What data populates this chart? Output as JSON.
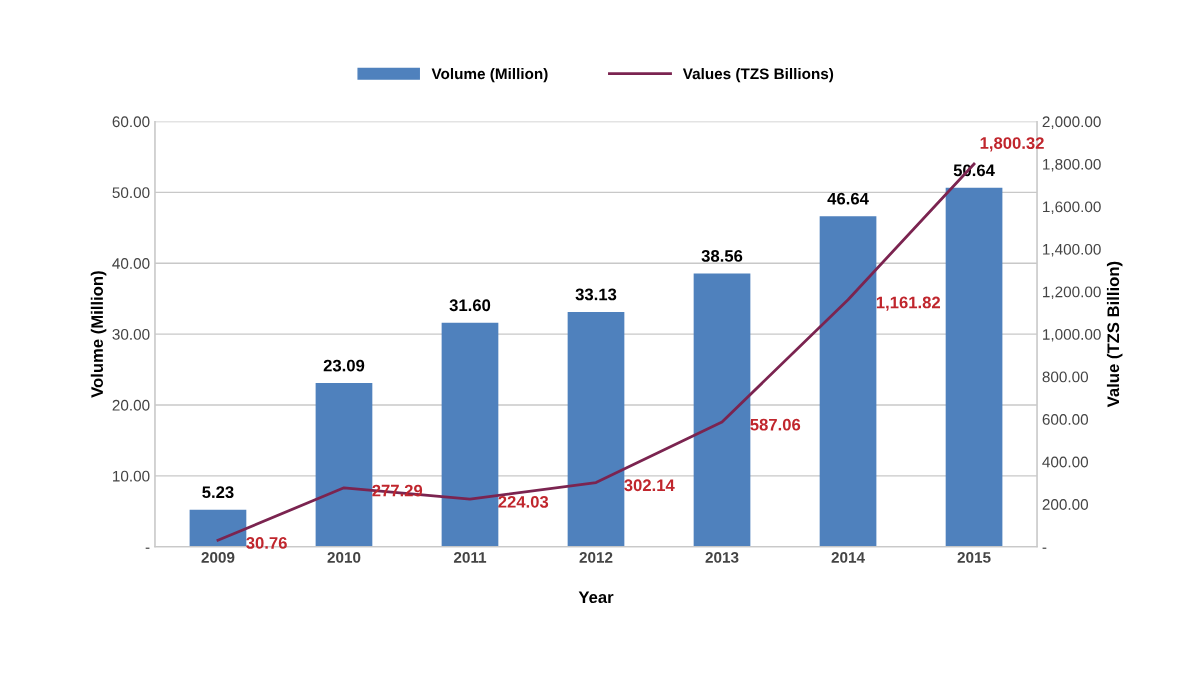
{
  "chart_data": {
    "type": "bar",
    "xlabel": "Year",
    "ylabel": "Volume (Million)",
    "y2label": "Value (TZS Billion)",
    "categories": [
      "2009",
      "2010",
      "2011",
      "2012",
      "2013",
      "2014",
      "2015"
    ],
    "series": [
      {
        "name": "Volume (Million)",
        "color": "#4f81bd",
        "values": [
          5.23,
          23.09,
          31.6,
          33.13,
          38.56,
          46.64,
          50.64
        ],
        "value_labels": [
          "5.23",
          "23.09",
          "31.60",
          "33.13",
          "38.56",
          "46.64",
          "50.64"
        ]
      },
      {
        "name": "Values (TZS Billions)",
        "type": "line",
        "axis": "y2",
        "color": "#7b2450",
        "values": [
          30.76,
          277.29,
          224.03,
          302.14,
          587.06,
          1161.82,
          1800.32
        ],
        "value_labels": [
          "30.76",
          "277.29",
          "224.03",
          "302.14",
          "587.06",
          "1,161.82",
          "1,800.32"
        ]
      }
    ],
    "ylim": [
      0,
      60
    ],
    "yticks": [
      {
        "value": 0,
        "label": "-"
      },
      {
        "value": 10,
        "label": "10.00"
      },
      {
        "value": 20,
        "label": "20.00"
      },
      {
        "value": 30,
        "label": "30.00"
      },
      {
        "value": 40,
        "label": "40.00"
      },
      {
        "value": 50,
        "label": "50.00"
      },
      {
        "value": 60,
        "label": "60.00"
      }
    ],
    "y2lim": [
      0,
      2000
    ],
    "y2ticks": [
      {
        "value": 0,
        "label": "-"
      },
      {
        "value": 200,
        "label": "200.00"
      },
      {
        "value": 400,
        "label": "400.00"
      },
      {
        "value": 600,
        "label": "600.00"
      },
      {
        "value": 800,
        "label": "800.00"
      },
      {
        "value": 1000,
        "label": "1,000.00"
      },
      {
        "value": 1200,
        "label": "1,200.00"
      },
      {
        "value": 1400,
        "label": "1,400.00"
      },
      {
        "value": 1600,
        "label": "1,600.00"
      },
      {
        "value": 1800,
        "label": "1,800.00"
      },
      {
        "value": 2000,
        "label": "2,000.00"
      }
    ],
    "grid": "y",
    "legend": "top",
    "marker": "none"
  }
}
